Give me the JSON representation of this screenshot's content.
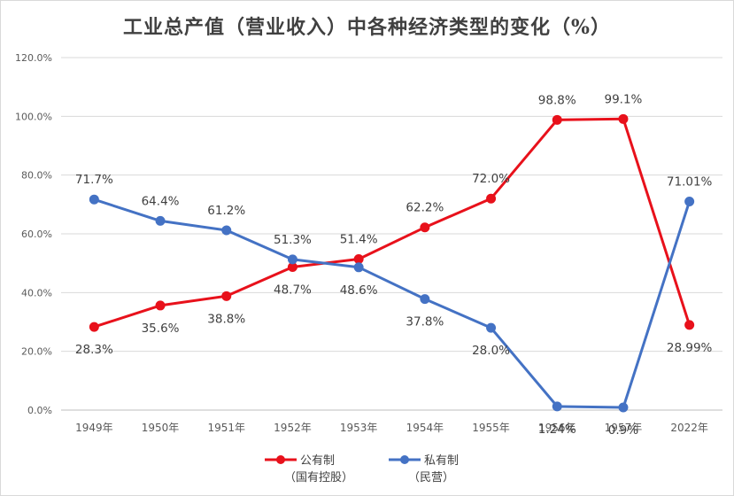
{
  "chart_data": {
    "type": "line",
    "title": "工业总产值（营业收入）中各种经济类型的变化（%）",
    "categories": [
      "1949年",
      "1950年",
      "1951年",
      "1952年",
      "1953年",
      "1954年",
      "1955年",
      "1956年",
      "1957年",
      "2022年"
    ],
    "ylim": [
      0,
      120
    ],
    "yticks": [
      0,
      20,
      40,
      60,
      80,
      100,
      120
    ],
    "ytick_labels": [
      "0.0%",
      "20.0%",
      "40.0%",
      "60.0%",
      "80.0%",
      "100.0%",
      "120.0%"
    ],
    "grid": true,
    "legend_position": "bottom",
    "series": [
      {
        "name": "公有制",
        "name_line2": "（国有控股）",
        "color": "#e8111b",
        "values": [
          28.3,
          35.6,
          38.8,
          48.7,
          51.4,
          62.2,
          72.0,
          98.8,
          99.1,
          28.99
        ],
        "labels": [
          "28.3%",
          "35.6%",
          "38.8%",
          "48.7%",
          "51.4%",
          "62.2%",
          "72.0%",
          "98.8%",
          "99.1%",
          "28.99%"
        ]
      },
      {
        "name": "私有制",
        "name_line2": "（民营）",
        "color": "#4472c4",
        "values": [
          71.7,
          64.4,
          61.2,
          51.3,
          48.6,
          37.8,
          28.0,
          1.24,
          0.9,
          71.01
        ],
        "labels": [
          "71.7%",
          "64.4%",
          "61.2%",
          "51.3%",
          "48.6%",
          "37.8%",
          "28.0%",
          "1.24%",
          "0.9%",
          "71.01%"
        ]
      }
    ]
  }
}
